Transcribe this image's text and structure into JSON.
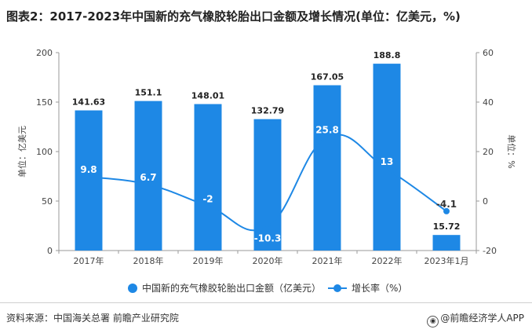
{
  "title": "图表2：2017-2023年中国新的充气橡胶轮胎出口金额及增长情况(单位：亿美元，%)",
  "source": "资料来源：中国海关总署 前瞻产业研究院",
  "brand": "@前瞻经济学人APP",
  "colors": {
    "bar": "#1E88E5",
    "line": "#1E88E5",
    "grid": "#e6e6e6",
    "axis": "#999999"
  },
  "chart_data": {
    "type": "bar+line",
    "categories": [
      "2017年",
      "2018年",
      "2019年",
      "2020年",
      "2021年",
      "2022年",
      "2023年1月"
    ],
    "series": [
      {
        "name": "中国新的充气橡胶轮胎出口金额（亿美元）",
        "type": "bar",
        "axis": "left",
        "values": [
          141.63,
          151.1,
          148.01,
          132.79,
          167.05,
          188.8,
          15.72
        ],
        "labels": [
          "141.63",
          "151.1",
          "148.01",
          "132.79",
          "167.05",
          "188.8",
          "15.72"
        ]
      },
      {
        "name": "增长率（%）",
        "type": "line",
        "axis": "right",
        "values": [
          9.8,
          6.7,
          -2,
          -10.3,
          25.8,
          13,
          -4.1
        ],
        "labels": [
          "9.8",
          "6.7",
          "-2",
          "-10.3",
          "25.8",
          "13",
          "-4.1"
        ]
      }
    ],
    "y_left": {
      "label": "单位：亿美元",
      "range": [
        0,
        200
      ],
      "ticks": [
        "0",
        "50",
        "100",
        "150",
        "200"
      ]
    },
    "y_right": {
      "label": "单位：%",
      "range": [
        -20,
        60
      ],
      "ticks": [
        "-20",
        "0",
        "20",
        "40",
        "60"
      ]
    },
    "grid": false,
    "legend_position": "bottom"
  }
}
